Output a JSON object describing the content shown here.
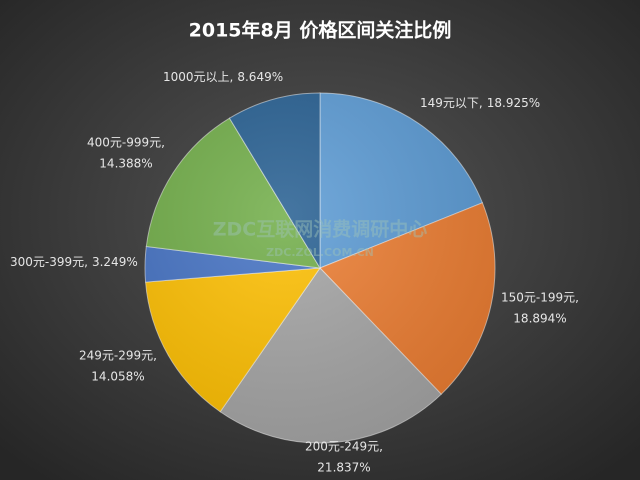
{
  "chart_data": {
    "type": "pie",
    "title": "2015年8月  价格区间关注比例",
    "watermark": "ZDC互联网消费调研中心",
    "watermark_url": "ZDC.ZOL.COM.CN",
    "categories": [
      "149元以下,",
      "150元-199元,",
      "200元-249元,",
      "249元-299元,",
      "300元-399元,",
      "400元-999元,",
      "1000元以上,"
    ],
    "values": [
      18.925,
      18.894,
      21.837,
      14.058,
      3.249,
      14.388,
      8.649
    ],
    "value_labels": [
      "18.925%",
      "18.894%",
      "21.837%",
      "14.058%",
      "3.249%",
      "14.388%",
      "8.649%"
    ],
    "colors": [
      "#5b9bd5",
      "#ed7d31",
      "#a5a5a5",
      "#ffc000",
      "#4472c4",
      "#70ad47",
      "#255e91"
    ]
  }
}
